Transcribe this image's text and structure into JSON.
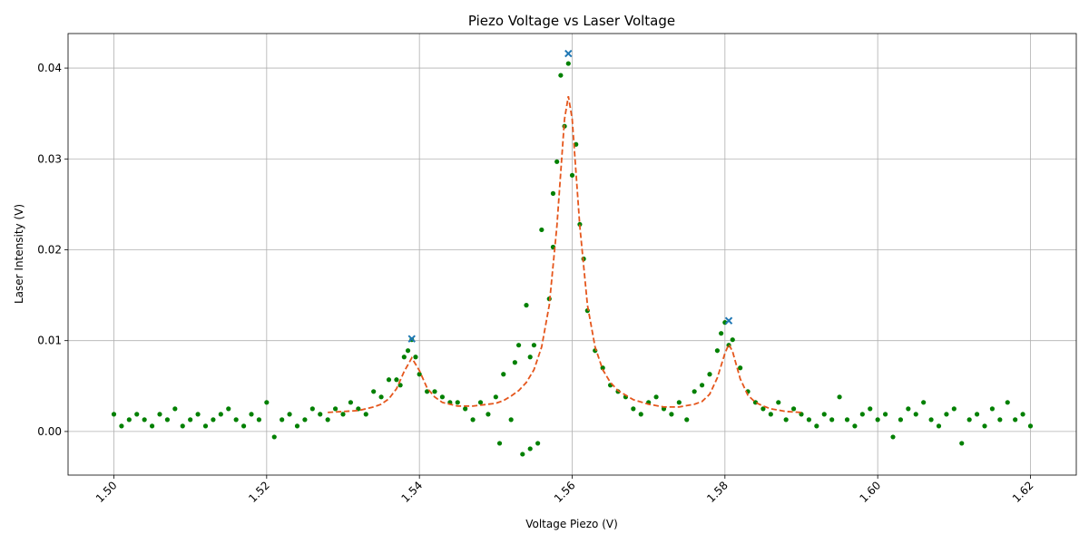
{
  "chart_data": {
    "type": "scatter",
    "title": "Piezo Voltage vs Laser Voltage",
    "xlabel": "Voltage Piezo (V)",
    "ylabel": "Laser Intensity (V)",
    "xlim": [
      1.494,
      1.626
    ],
    "ylim": [
      -0.0048,
      0.0438
    ],
    "xticks": [
      {
        "value": 1.5,
        "label": "1.50"
      },
      1.52,
      1.54,
      1.56,
      1.58,
      {
        "value": 1.6,
        "label": "1.60"
      },
      1.62
    ],
    "yticks": [
      {
        "value": 0,
        "label": "0.00"
      },
      0.01,
      0.02,
      0.03,
      0.04
    ],
    "grid": true,
    "series": [
      {
        "type": "scatter",
        "color": "#008000",
        "x": [
          1.5,
          1.501,
          1.502,
          1.503,
          1.504,
          1.505,
          1.506,
          1.507,
          1.508,
          1.509,
          1.51,
          1.511,
          1.512,
          1.513,
          1.514,
          1.515,
          1.516,
          1.517,
          1.518,
          1.519,
          1.52,
          1.521,
          1.522,
          1.523,
          1.524,
          1.525,
          1.526,
          1.527,
          1.528,
          1.529,
          1.53,
          1.531,
          1.532,
          1.533,
          1.534,
          1.535,
          1.536,
          1.537,
          1.5375,
          1.538,
          1.5385,
          1.539,
          1.5395,
          1.54,
          1.541,
          1.542,
          1.543,
          1.544,
          1.545,
          1.546,
          1.547,
          1.548,
          1.549,
          1.55,
          1.5505,
          1.551,
          1.552,
          1.5525,
          1.553,
          1.5535,
          1.554,
          1.5545,
          1.5545,
          1.555,
          1.5555,
          1.556,
          1.557,
          1.5575,
          1.5575,
          1.558,
          1.5585,
          1.559,
          1.5595,
          1.56,
          1.5605,
          1.561,
          1.5615,
          1.562,
          1.563,
          1.564,
          1.565,
          1.566,
          1.567,
          1.568,
          1.569,
          1.57,
          1.571,
          1.572,
          1.573,
          1.574,
          1.575,
          1.576,
          1.577,
          1.578,
          1.579,
          1.5795,
          1.58,
          1.5805,
          1.581,
          1.582,
          1.583,
          1.584,
          1.585,
          1.586,
          1.587,
          1.588,
          1.589,
          1.59,
          1.591,
          1.592,
          1.593,
          1.594,
          1.595,
          1.596,
          1.597,
          1.598,
          1.599,
          1.6,
          1.601,
          1.602,
          1.603,
          1.604,
          1.605,
          1.606,
          1.607,
          1.608,
          1.609,
          1.61,
          1.611,
          1.612,
          1.613,
          1.614,
          1.615,
          1.616,
          1.617,
          1.618,
          1.619,
          1.62
        ],
        "values": [
          0.0019,
          0.0006,
          0.0013,
          0.0019,
          0.0013,
          0.0006,
          0.0019,
          0.0013,
          0.0025,
          0.0006,
          0.0013,
          0.0019,
          0.0006,
          0.0013,
          0.0019,
          0.0025,
          0.0013,
          0.0006,
          0.0019,
          0.0013,
          0.0032,
          -0.0006,
          0.0013,
          0.0019,
          0.0006,
          0.0013,
          0.0025,
          0.0019,
          0.0013,
          0.0025,
          0.0019,
          0.0032,
          0.0025,
          0.0019,
          0.0044,
          0.0038,
          0.0057,
          0.0057,
          0.0051,
          0.0082,
          0.0089,
          0.0101,
          0.0082,
          0.0063,
          0.0044,
          0.0044,
          0.0038,
          0.0032,
          0.0032,
          0.0025,
          0.0013,
          0.0032,
          0.0019,
          0.0038,
          -0.0013,
          0.0063,
          0.0013,
          0.0076,
          0.0095,
          -0.0025,
          0.0139,
          -0.0019,
          0.0082,
          0.0095,
          -0.0013,
          0.0222,
          0.0146,
          0.0203,
          0.0262,
          0.0297,
          0.0392,
          0.0336,
          0.0405,
          0.0282,
          0.0316,
          0.0228,
          0.019,
          0.0133,
          0.0089,
          0.007,
          0.0051,
          0.0044,
          0.0038,
          0.0025,
          0.0019,
          0.0032,
          0.0038,
          0.0025,
          0.0019,
          0.0032,
          0.0013,
          0.0044,
          0.0051,
          0.0063,
          0.0089,
          0.0108,
          0.012,
          0.0095,
          0.0101,
          0.007,
          0.0044,
          0.0032,
          0.0025,
          0.0019,
          0.0032,
          0.0013,
          0.0025,
          0.0019,
          0.0013,
          0.0006,
          0.0019,
          0.0013,
          0.0038,
          0.0013,
          0.0006,
          0.0019,
          0.0025,
          0.0013,
          0.0019,
          -0.0006,
          0.0013,
          0.0025,
          0.0019,
          0.0032,
          0.0013,
          0.0006,
          0.0019,
          0.0025,
          -0.0013,
          0.0013,
          0.0019,
          0.0006,
          0.0025,
          0.0013,
          0.0032,
          0.0013,
          0.0019,
          0.0006
        ]
      },
      {
        "type": "line",
        "color": "#e5561c",
        "dashed": true,
        "x": [
          1.528,
          1.53,
          1.532,
          1.534,
          1.535,
          1.536,
          1.537,
          1.538,
          1.539,
          1.54,
          1.541,
          1.542,
          1.543,
          1.544,
          1.545,
          1.546,
          1.547,
          1.548,
          1.549,
          1.55,
          1.551,
          1.552,
          1.553,
          1.554,
          1.555,
          1.556,
          1.557,
          1.558,
          1.559,
          1.5595,
          1.56,
          1.561,
          1.562,
          1.563,
          1.564,
          1.565,
          1.566,
          1.568,
          1.57,
          1.572,
          1.574,
          1.576,
          1.577,
          1.578,
          1.579,
          1.58,
          1.5805,
          1.581,
          1.582,
          1.583,
          1.584,
          1.585,
          1.586,
          1.588,
          1.59
        ],
        "values": [
          0.0021,
          0.0022,
          0.0023,
          0.0027,
          0.003,
          0.0036,
          0.0047,
          0.0066,
          0.0081,
          0.0067,
          0.0048,
          0.0038,
          0.0032,
          0.003,
          0.0028,
          0.0028,
          0.0028,
          0.0029,
          0.003,
          0.0031,
          0.0034,
          0.0039,
          0.0045,
          0.0054,
          0.0068,
          0.0093,
          0.0139,
          0.0226,
          0.0344,
          0.0369,
          0.0344,
          0.0226,
          0.0139,
          0.0093,
          0.0068,
          0.0054,
          0.0045,
          0.0035,
          0.003,
          0.0027,
          0.0027,
          0.003,
          0.0033,
          0.0041,
          0.0059,
          0.0086,
          0.0096,
          0.0088,
          0.0058,
          0.004,
          0.0032,
          0.0028,
          0.0025,
          0.0022,
          0.0021
        ]
      },
      {
        "type": "marker",
        "color": "#1f77b4",
        "x": [
          1.539,
          1.5595,
          1.5805
        ],
        "values": [
          0.0102,
          0.0416,
          0.0122
        ]
      }
    ]
  }
}
